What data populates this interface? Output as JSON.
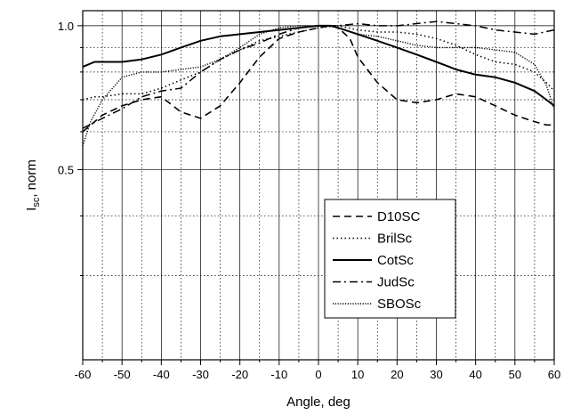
{
  "chart_data": {
    "type": "line",
    "title": "",
    "xlabel": "Angle, deg",
    "ylabel": {
      "main": "I",
      "sub": "sc",
      "suffix": ", norm"
    },
    "xlim": [
      -60,
      60
    ],
    "ylim": [
      0.2,
      1.075
    ],
    "y_scale": "log",
    "x_ticks": [
      -60,
      -50,
      -40,
      -30,
      -20,
      -10,
      0,
      10,
      20,
      30,
      40,
      50,
      60
    ],
    "x_tick_labels": [
      "-60",
      "-50",
      "-40",
      "-30",
      "-20",
      "-10",
      "0",
      "10",
      "20",
      "30",
      "40",
      "50",
      "60"
    ],
    "y_major_ticks": [
      0.5,
      1.0
    ],
    "y_tick_labels": [
      "0.5",
      "1.0"
    ],
    "y_minor_ticks": [
      0.3,
      0.4,
      0.6,
      0.7,
      0.8,
      0.9
    ],
    "grid": true,
    "legend_position": "lower-right",
    "series": [
      {
        "name": "D10SC",
        "style": "dashed",
        "x": [
          -60,
          -55,
          -50,
          -45,
          -40,
          -35,
          -30,
          -25,
          -20,
          -15,
          -10,
          -5,
          0,
          3,
          5,
          8,
          10,
          15,
          20,
          25,
          30,
          35,
          40,
          45,
          50,
          55,
          58,
          60
        ],
        "y": [
          0.6,
          0.65,
          0.68,
          0.7,
          0.71,
          0.66,
          0.64,
          0.68,
          0.76,
          0.86,
          0.94,
          0.97,
          0.99,
          1.0,
          0.99,
          0.94,
          0.86,
          0.76,
          0.7,
          0.69,
          0.7,
          0.72,
          0.71,
          0.68,
          0.65,
          0.63,
          0.62,
          0.62
        ]
      },
      {
        "name": "BrilSc",
        "style": "dotted",
        "x": [
          -60,
          -57,
          -55,
          -50,
          -45,
          -40,
          -35,
          -30,
          -25,
          -20,
          -15,
          -10,
          -5,
          0,
          5,
          10,
          15,
          20,
          25,
          30,
          35,
          40,
          45,
          50,
          55,
          58,
          60
        ],
        "y": [
          0.7,
          0.71,
          0.71,
          0.72,
          0.72,
          0.74,
          0.77,
          0.8,
          0.85,
          0.89,
          0.93,
          0.95,
          0.97,
          0.99,
          1.0,
          0.98,
          0.97,
          0.97,
          0.96,
          0.94,
          0.91,
          0.87,
          0.84,
          0.83,
          0.8,
          0.76,
          0.73
        ]
      },
      {
        "name": "CotSc",
        "style": "solid",
        "x": [
          -60,
          -57,
          -55,
          -50,
          -45,
          -40,
          -35,
          -30,
          -25,
          -20,
          -15,
          -10,
          -5,
          0,
          3,
          5,
          10,
          15,
          20,
          25,
          30,
          35,
          40,
          45,
          50,
          55,
          58,
          60
        ],
        "y": [
          0.82,
          0.84,
          0.84,
          0.84,
          0.85,
          0.87,
          0.9,
          0.93,
          0.95,
          0.96,
          0.97,
          0.98,
          0.99,
          1.0,
          1.0,
          0.99,
          0.96,
          0.93,
          0.9,
          0.87,
          0.84,
          0.81,
          0.79,
          0.78,
          0.76,
          0.73,
          0.7,
          0.68
        ]
      },
      {
        "name": "JudSc",
        "style": "dashdot",
        "x": [
          -60,
          -55,
          -50,
          -45,
          -40,
          -35,
          -30,
          -25,
          -20,
          -15,
          -10,
          -5,
          0,
          5,
          10,
          15,
          20,
          25,
          30,
          35,
          40,
          45,
          50,
          55,
          60
        ],
        "y": [
          0.61,
          0.64,
          0.67,
          0.71,
          0.73,
          0.74,
          0.8,
          0.85,
          0.89,
          0.92,
          0.96,
          0.99,
          1.0,
          1.0,
          1.01,
          1.0,
          1.0,
          1.01,
          1.02,
          1.01,
          1.0,
          0.98,
          0.97,
          0.96,
          0.98
        ]
      },
      {
        "name": "SBOSc",
        "style": "dense-dotted",
        "x": [
          -60,
          -58,
          -55,
          -50,
          -45,
          -40,
          -35,
          -30,
          -25,
          -20,
          -15,
          -10,
          -5,
          0,
          3,
          5,
          10,
          15,
          20,
          25,
          30,
          35,
          40,
          45,
          50,
          55,
          58,
          60
        ],
        "y": [
          0.56,
          0.63,
          0.7,
          0.78,
          0.8,
          0.8,
          0.81,
          0.82,
          0.85,
          0.9,
          0.96,
          0.99,
          1.0,
          1.0,
          1.0,
          0.99,
          0.96,
          0.95,
          0.93,
          0.91,
          0.9,
          0.9,
          0.9,
          0.89,
          0.88,
          0.83,
          0.75,
          0.67
        ]
      }
    ]
  }
}
